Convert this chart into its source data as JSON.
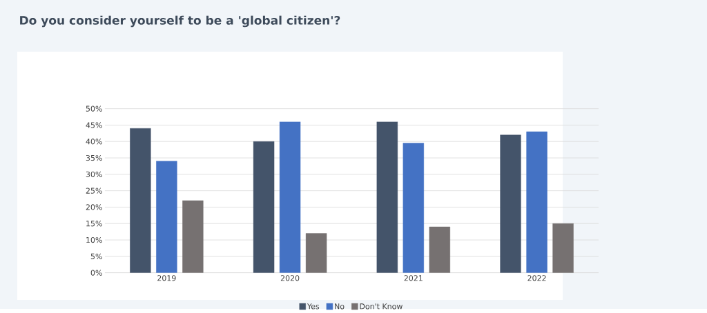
{
  "chart_data": {
    "type": "bar",
    "title": "Do you consider yourself to be a 'global citizen'?",
    "categories": [
      "2019",
      "2020",
      "2021",
      "2022"
    ],
    "series": [
      {
        "name": "Yes",
        "color": "#44546a",
        "values": [
          44,
          40,
          46,
          42
        ]
      },
      {
        "name": "No",
        "color": "#4472c4",
        "values": [
          34,
          46,
          39.5,
          43
        ]
      },
      {
        "name": "Don't Know",
        "color": "#767171",
        "values": [
          22,
          12,
          14,
          15
        ]
      }
    ],
    "ylim": [
      0,
      50
    ],
    "yticks": [
      {
        "value": 0,
        "label": "0%"
      },
      {
        "value": 5,
        "label": "5%"
      },
      {
        "value": 10,
        "label": "10%"
      },
      {
        "value": 15,
        "label": "15%"
      },
      {
        "value": 20,
        "label": "20%"
      },
      {
        "value": 25,
        "label": "25%"
      },
      {
        "value": 30,
        "label": "30%"
      },
      {
        "value": 35,
        "label": "35%"
      },
      {
        "value": 40,
        "label": "40%"
      },
      {
        "value": 45,
        "label": "45%"
      },
      {
        "value": 50,
        "label": "50%"
      }
    ],
    "grid": "y",
    "legend": "bottom"
  }
}
